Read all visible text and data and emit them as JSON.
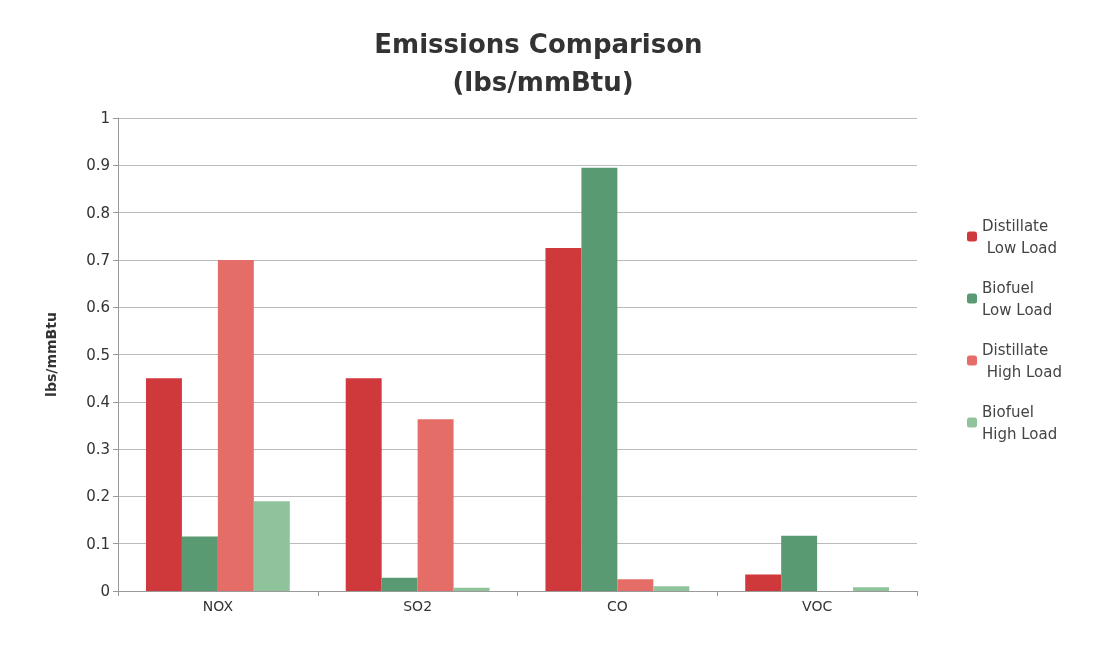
{
  "chart_data": {
    "type": "bar",
    "title": "Emissions Comparison (lbs/mmBtu)",
    "ylabel": "lbs/mmBtu",
    "categories": [
      "NOX",
      "SO2",
      "CO",
      "VOC"
    ],
    "series": [
      {
        "name": "Distillate Low Load",
        "color": "#d0393b",
        "values": [
          0.45,
          0.45,
          0.725,
          0.035
        ]
      },
      {
        "name": "Biofuel Low Load",
        "color": "#5a9a72",
        "values": [
          0.115,
          0.028,
          0.895,
          0.117
        ]
      },
      {
        "name": "Distillate High Load",
        "color": "#e56d68",
        "values": [
          0.7,
          0.363,
          0.025,
          0
        ]
      },
      {
        "name": "Biofuel High Load",
        "color": "#8fc39c",
        "values": [
          0.19,
          0.007,
          0.01,
          0.008
        ]
      }
    ],
    "ylim": [
      0,
      1
    ],
    "yticks": [
      0,
      0.1,
      0.2,
      0.3,
      0.4,
      0.5,
      0.6,
      0.7,
      0.8,
      0.9,
      1
    ],
    "grid": "y",
    "legend": "right"
  }
}
